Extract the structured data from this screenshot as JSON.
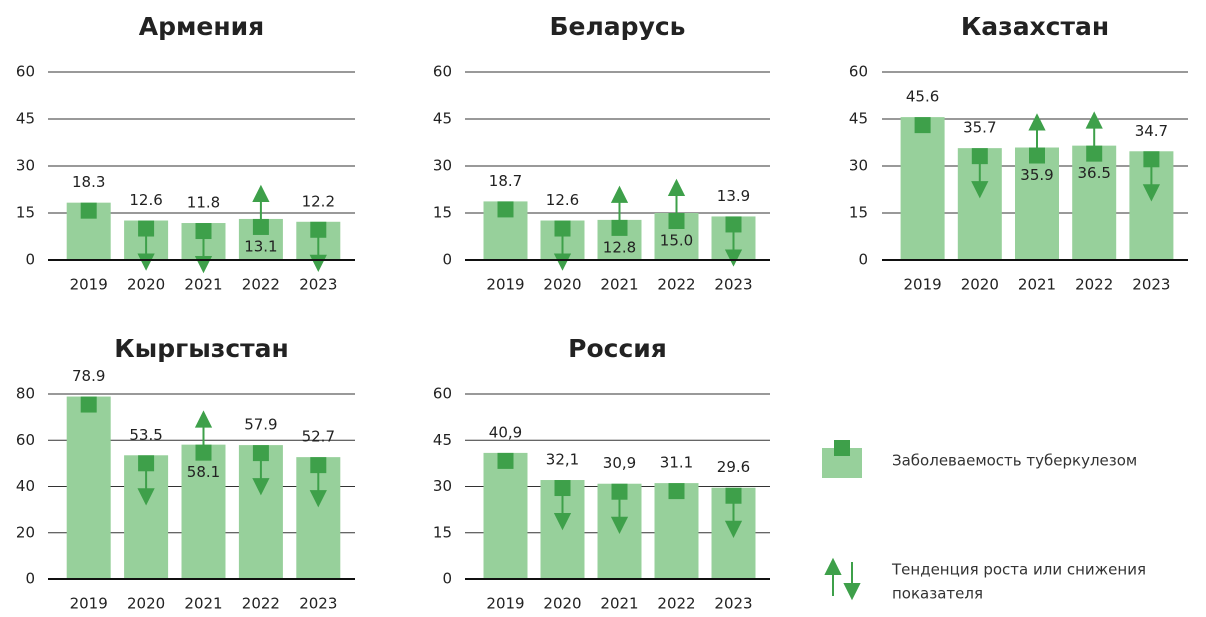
{
  "chart_data": [
    {
      "type": "bar",
      "title": "Армения",
      "categories": [
        "2019",
        "2020",
        "2021",
        "2022",
        "2023"
      ],
      "values": [
        18.3,
        12.6,
        11.8,
        13.1,
        12.2
      ],
      "trend": [
        null,
        "down",
        "down",
        "up",
        "down"
      ],
      "color": "#97d09b",
      "marker_color": "#3ea04a",
      "ylim": [
        0,
        60
      ],
      "yticks": [
        0,
        15,
        30,
        45,
        60
      ],
      "grid": true
    },
    {
      "type": "bar",
      "title": "Беларусь",
      "categories": [
        "2019",
        "2020",
        "2021",
        "2022",
        "2023"
      ],
      "values": [
        18.7,
        12.6,
        12.8,
        15.0,
        13.9
      ],
      "value_labels": [
        "18.7",
        "12.6",
        "12.8",
        "15.0",
        "13.9"
      ],
      "trend": [
        null,
        "down",
        "up",
        "up",
        "down"
      ],
      "color": "#97d09b",
      "marker_color": "#3ea04a",
      "ylim": [
        0,
        60
      ],
      "yticks": [
        0,
        15,
        30,
        45,
        60
      ],
      "grid": true
    },
    {
      "type": "bar",
      "title": "Казахстан",
      "categories": [
        "2019",
        "2020",
        "2021",
        "2022",
        "2023"
      ],
      "values": [
        45.6,
        35.7,
        35.9,
        36.5,
        34.7
      ],
      "trend": [
        null,
        "down",
        "up",
        "up",
        "down"
      ],
      "color": "#97d09b",
      "marker_color": "#3ea04a",
      "ylim": [
        0,
        60
      ],
      "yticks": [
        0,
        15,
        30,
        45,
        60
      ],
      "grid": true
    },
    {
      "type": "bar",
      "title": "Кыргызстан",
      "categories": [
        "2019",
        "2020",
        "2021",
        "2022",
        "2023"
      ],
      "values": [
        78.9,
        53.5,
        58.1,
        57.9,
        52.7
      ],
      "trend": [
        null,
        "down",
        "up",
        "down",
        "down"
      ],
      "color": "#97d09b",
      "marker_color": "#3ea04a",
      "ylim": [
        0,
        80
      ],
      "yticks": [
        0,
        20,
        40,
        60,
        80
      ],
      "grid": true
    },
    {
      "type": "bar",
      "title": "Россия",
      "categories": [
        "2019",
        "2020",
        "2021",
        "2022",
        "2023"
      ],
      "values": [
        40.9,
        32.1,
        30.9,
        31.1,
        29.6
      ],
      "value_labels": [
        "40,9",
        "32,1",
        "30,9",
        "31.1",
        "29.6"
      ],
      "trend": [
        null,
        "down",
        "down",
        null,
        "down"
      ],
      "color": "#97d09b",
      "marker_color": "#3ea04a",
      "ylim": [
        0,
        60
      ],
      "yticks": [
        0,
        15,
        30,
        45,
        60
      ],
      "grid": true
    }
  ],
  "legend": {
    "incidence": "Заболеваемость туберкулезом",
    "trend_line1": "Тенденция роста или снижения",
    "trend_line2": "показателя"
  }
}
